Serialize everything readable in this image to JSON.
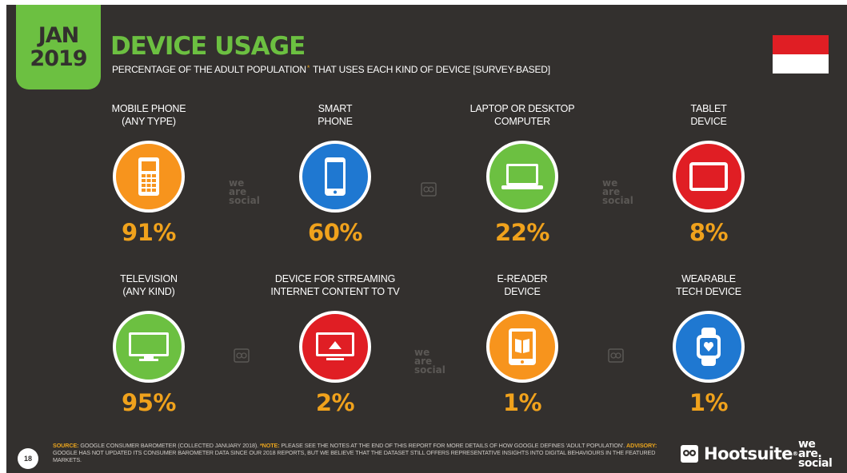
{
  "header": {
    "month": "JAN",
    "year": "2019",
    "title": "DEVICE USAGE",
    "subtitle_pre": "PERCENTAGE OF THE ADULT POPULATION",
    "subtitle_star": "*",
    "subtitle_post": "THAT USES EACH KIND OF DEVICE [SURVEY-BASED]"
  },
  "colors": {
    "background": "#33302e",
    "accent": "#6cc041",
    "value": "#f0a21c",
    "orange": "#f7941d",
    "blue": "#1f78d1",
    "green": "#6cc041",
    "red": "#e01e24"
  },
  "devices": [
    {
      "line1": "MOBILE PHONE",
      "line2": "(ANY TYPE)",
      "value": "91%",
      "icon": "mobile-phone-icon",
      "color": "#f7941d"
    },
    {
      "line1": "SMART",
      "line2": "PHONE",
      "value": "60%",
      "icon": "smartphone-icon",
      "color": "#1f78d1"
    },
    {
      "line1": "LAPTOP OR DESKTOP",
      "line2": "COMPUTER",
      "value": "22%",
      "icon": "laptop-icon",
      "color": "#6cc041"
    },
    {
      "line1": "TABLET",
      "line2": "DEVICE",
      "value": "8%",
      "icon": "tablet-icon",
      "color": "#e01e24"
    },
    {
      "line1": "TELEVISION",
      "line2": "(ANY KIND)",
      "value": "95%",
      "icon": "television-icon",
      "color": "#6cc041"
    },
    {
      "line1": "DEVICE FOR STREAMING",
      "line2": "INTERNET CONTENT TO TV",
      "value": "2%",
      "icon": "streaming-device-icon",
      "color": "#e01e24"
    },
    {
      "line1": "E-READER",
      "line2": "DEVICE",
      "value": "1%",
      "icon": "ereader-icon",
      "color": "#f7941d"
    },
    {
      "line1": "WEARABLE",
      "line2": "TECH DEVICE",
      "value": "1%",
      "icon": "smartwatch-icon",
      "color": "#1f78d1"
    }
  ],
  "watermark": {
    "line1": "we",
    "line2": "are",
    "line3": "social"
  },
  "footer": {
    "page_number": "18",
    "source_label": "SOURCE:",
    "source_text": "GOOGLE CONSUMER BAROMETER (COLLECTED JANUARY 2018).",
    "note_label": "*NOTE:",
    "note_text": "PLEASE SEE THE NOTES AT THE END OF THIS REPORT FOR MORE DETAILS OF HOW GOOGLE DEFINES 'ADULT POPULATION'.",
    "advisory_label": "ADVISORY:",
    "advisory_text": "GOOGLE HAS NOT UPDATED ITS CONSUMER BAROMETER DATA SINCE OUR 2018 REPORTS, BUT WE BELIEVE THAT THE DATASET STILL OFFERS REPRESENTATIVE INSIGHTS INTO DIGITAL BEHAVIOURS IN THE FEATURED MARKETS."
  },
  "brand": {
    "hootsuite": "Hootsuite",
    "trademark": "®",
    "we": "we",
    "are": "are.",
    "social": "social"
  }
}
